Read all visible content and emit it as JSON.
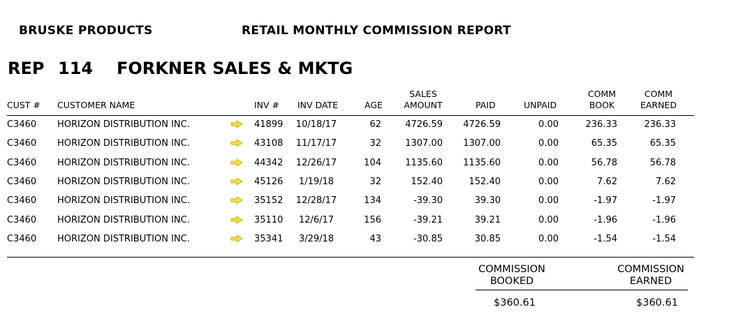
{
  "header": {
    "company": "BRUSKE PRODUCTS",
    "report_title": "RETAIL MONTHLY COMMISSION REPORT"
  },
  "rep": {
    "label": "REP",
    "number": "114",
    "name": "FORKNER SALES & MKTG"
  },
  "columns": {
    "cust": "CUST #",
    "customer_name": "CUSTOMER NAME",
    "inv": "INV #",
    "inv_date": "INV DATE",
    "age": "AGE",
    "sales_amount_1": "SALES",
    "sales_amount_2": "AMOUNT",
    "paid": "PAID",
    "unpaid": "UNPAID",
    "comm_book_1": "COMM",
    "comm_book_2": "BOOK",
    "comm_earned_1": "COMM",
    "comm_earned_2": "EARNED"
  },
  "rows": [
    {
      "cust": "C3460",
      "name": "HORIZON DISTRIBUTION INC.",
      "inv": "41899",
      "date": "10/18/17",
      "age": "62",
      "sales": "4726.59",
      "paid": "4726.59",
      "unpaid": "0.00",
      "book": "236.33",
      "earned": "236.33"
    },
    {
      "cust": "C3460",
      "name": "HORIZON DISTRIBUTION INC.",
      "inv": "43108",
      "date": "11/17/17",
      "age": "32",
      "sales": "1307.00",
      "paid": "1307.00",
      "unpaid": "0.00",
      "book": "65.35",
      "earned": "65.35"
    },
    {
      "cust": "C3460",
      "name": "HORIZON DISTRIBUTION INC.",
      "inv": "44342",
      "date": "12/26/17",
      "age": "104",
      "sales": "1135.60",
      "paid": "1135.60",
      "unpaid": "0.00",
      "book": "56.78",
      "earned": "56.78"
    },
    {
      "cust": "C3460",
      "name": "HORIZON DISTRIBUTION INC.",
      "inv": "45126",
      "date": "1/19/18",
      "age": "32",
      "sales": "152.40",
      "paid": "152.40",
      "unpaid": "0.00",
      "book": "7.62",
      "earned": "7.62"
    },
    {
      "cust": "C3460",
      "name": "HORIZON DISTRIBUTION INC.",
      "inv": "35152",
      "date": "12/28/17",
      "age": "134",
      "sales": "-39.30",
      "paid": "39.30",
      "unpaid": "0.00",
      "book": "-1.97",
      "earned": "-1.97"
    },
    {
      "cust": "C3460",
      "name": "HORIZON DISTRIBUTION INC.",
      "inv": "35110",
      "date": "12/6/17",
      "age": "156",
      "sales": "-39.21",
      "paid": "39.21",
      "unpaid": "0.00",
      "book": "-1.96",
      "earned": "-1.96"
    },
    {
      "cust": "C3460",
      "name": "HORIZON DISTRIBUTION INC.",
      "inv": "35341",
      "date": "3/29/18",
      "age": "43",
      "sales": "-30.85",
      "paid": "30.85",
      "unpaid": "0.00",
      "book": "-1.54",
      "earned": "-1.54"
    }
  ],
  "summary": {
    "booked_label_1": "COMMISSION",
    "booked_label_2": "BOOKED",
    "earned_label_1": "COMMISSION",
    "earned_label_2": "EARNED",
    "booked_value": "$360.61",
    "earned_value": "$360.61"
  },
  "icons": {
    "row_arrow": "arrow-right-icon"
  },
  "colors": {
    "arrow_fill": "#f5e342",
    "arrow_stroke": "#c9a800"
  }
}
